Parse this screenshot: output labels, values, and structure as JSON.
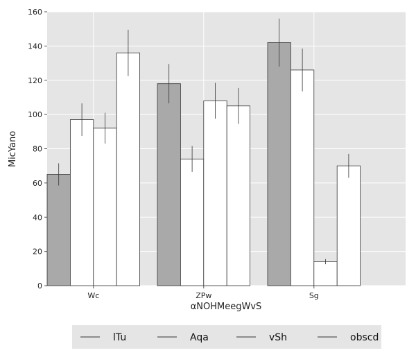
{
  "chart_data": {
    "type": "bar",
    "title": "",
    "xlabel": "αNOHMeegWvS",
    "ylabel": "MicYano",
    "categories": [
      "Wc",
      "ZPw",
      "Sg"
    ],
    "ylim": [
      0,
      160
    ],
    "yticks": [
      0,
      20,
      40,
      60,
      80,
      100,
      120,
      140,
      160
    ],
    "grid": true,
    "legend_position": "bottom",
    "series": [
      {
        "name": "lTu",
        "values": [
          65,
          118,
          142
        ],
        "errors": [
          6.5,
          11.5,
          14
        ],
        "color": "#a9a9a9"
      },
      {
        "name": "Aqa",
        "values": [
          97,
          74,
          126
        ],
        "errors": [
          9.5,
          7.5,
          12.5
        ],
        "color": "#ffffff"
      },
      {
        "name": "vSh",
        "values": [
          92,
          108,
          14
        ],
        "errors": [
          9,
          10.5,
          1.5
        ],
        "color": "#ffffff"
      },
      {
        "name": "obscd",
        "values": [
          136,
          105,
          70
        ],
        "errors": [
          13.5,
          10.5,
          7
        ],
        "color": "#ffffff"
      }
    ]
  }
}
